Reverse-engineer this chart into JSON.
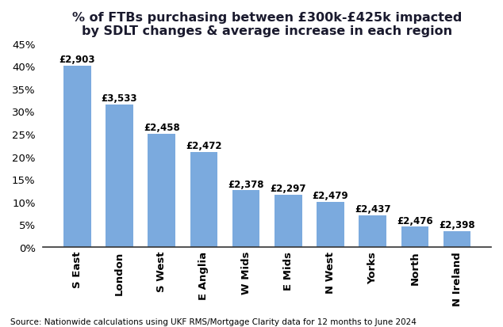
{
  "categories": [
    "S East",
    "London",
    "S West",
    "E Anglia",
    "W Mids",
    "E Mids",
    "N West",
    "Yorks",
    "North",
    "N Ireland"
  ],
  "values": [
    40.0,
    31.5,
    25.0,
    21.0,
    12.5,
    11.5,
    10.0,
    7.0,
    4.5,
    3.5
  ],
  "labels": [
    "£2,903",
    "£3,533",
    "£2,458",
    "£2,472",
    "£2,378",
    "£2,297",
    "£2,479",
    "£2,437",
    "£2,476",
    "£2,398"
  ],
  "bar_color": "#7baade",
  "title_line1": "% of FTBs purchasing between £300k-£425k impacted",
  "title_line2": "by SDLT changes & average increase in each region",
  "ylim": [
    0,
    45
  ],
  "yticks": [
    0,
    5,
    10,
    15,
    20,
    25,
    30,
    35,
    40,
    45
  ],
  "source": "Source: Nationwide calculations using UKF RMS/Mortgage Clarity data for 12 months to June 2024",
  "background_color": "#ffffff",
  "title_fontsize": 11.5,
  "tick_fontsize": 9.5,
  "label_fontsize": 8.5,
  "source_fontsize": 7.5
}
